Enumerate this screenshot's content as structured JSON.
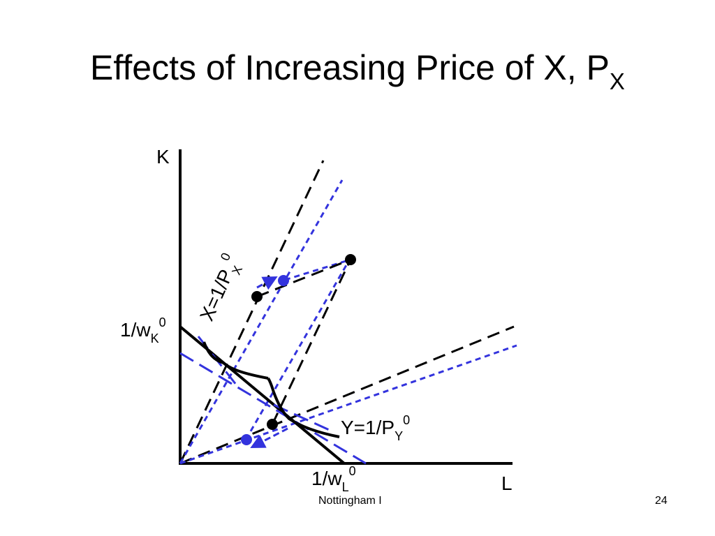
{
  "slide": {
    "title_main": "Effects of Increasing Price of X, P",
    "title_sub": "X",
    "footer_left": "Nottingham I",
    "page_number": "24"
  },
  "diagram": {
    "axis_y_label": "K",
    "axis_x_label": "L",
    "k_intercept": {
      "base": "1/w",
      "sub": "K",
      "sup": "0"
    },
    "l_intercept": {
      "base": "1/w",
      "sub": "L",
      "sup": "0"
    },
    "isoquant_x": {
      "base": "X=1/P",
      "sub": "X",
      "sup": "0"
    },
    "isoquant_y": {
      "base": "Y=1/P",
      "sub": "Y",
      "sup": "0"
    },
    "colors": {
      "original": "#000000",
      "after_change": "#3333dd"
    }
  }
}
